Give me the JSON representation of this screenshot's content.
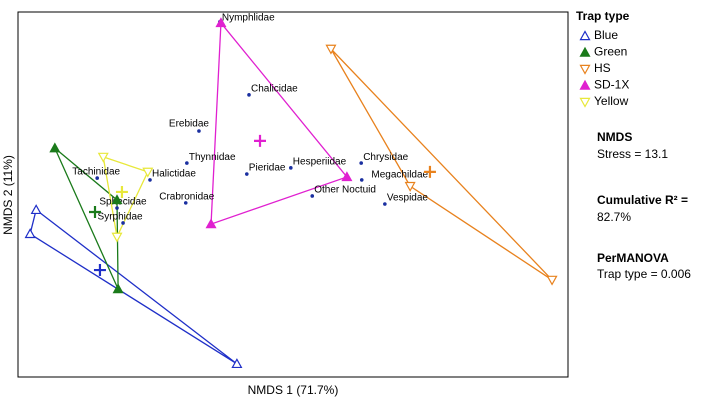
{
  "chart_data": {
    "type": "scatter",
    "x_label": "NMDS 1 (71.7%)",
    "y_label": "NMDS 2 (11%)",
    "xlim": [
      0,
      100
    ],
    "ylim": [
      0,
      100
    ],
    "points": {
      "color": "#1a2fa0",
      "names": [
        "Nymphlidae",
        "Chalicidae",
        "Erebidae",
        "Thynnidae",
        "Halictidae",
        "Tachinidae",
        "Sphecidae",
        "Syrphidae",
        "Crabronidae",
        "Pieridae",
        "Hesperiidae",
        "Chrysidae",
        "Megachildae",
        "Other Noctuid",
        "Vespidae"
      ],
      "x": [
        36.7,
        42.0,
        32.9,
        30.7,
        24.0,
        14.4,
        18.0,
        19.1,
        30.5,
        41.6,
        49.6,
        62.4,
        62.5,
        53.5,
        66.7
      ],
      "y": [
        97.3,
        77.3,
        67.4,
        58.6,
        54.0,
        54.5,
        46.3,
        42.2,
        47.7,
        55.6,
        57.3,
        58.6,
        54.0,
        49.6,
        47.4
      ]
    },
    "legend_title": "Trap type",
    "series": [
      {
        "name": "Blue",
        "color": "#1f2fc8",
        "marker": "triangle-up-open",
        "x": [
          3.3,
          39.8,
          2.2
        ],
        "y": [
          45.8,
          3.6,
          39.2
        ],
        "centroid_x": 14.9,
        "centroid_y": 29.3
      },
      {
        "name": "Green",
        "color": "#1a7a1a",
        "marker": "triangle-up-filled",
        "x": [
          6.7,
          18.0,
          18.2
        ],
        "y": [
          62.7,
          48.5,
          24.1
        ],
        "centroid_x": 14.0,
        "centroid_y": 45.2
      },
      {
        "name": "HS",
        "color": "#e8821e",
        "marker": "triangle-down-open",
        "x": [
          56.9,
          97.1,
          71.3
        ],
        "y": [
          89.9,
          26.6,
          52.3
        ],
        "centroid_x": 74.9,
        "centroid_y": 56.2
      },
      {
        "name": "SD-1X",
        "color": "#e020d0",
        "marker": "triangle-up-filled",
        "x": [
          36.9,
          59.8,
          35.1
        ],
        "y": [
          97.0,
          54.8,
          41.9
        ],
        "centroid_x": 44.0,
        "centroid_y": 64.7
      },
      {
        "name": "Yellow",
        "color": "#e8e83a",
        "marker": "triangle-down-open",
        "x": [
          15.5,
          23.6,
          18.0
        ],
        "y": [
          60.3,
          56.2,
          38.4
        ],
        "centroid_x": 18.9,
        "centroid_y": 50.7
      }
    ],
    "annotations": {
      "nmds_title": "NMDS",
      "stress": "Stress = 13.1",
      "r2_label": "Cumulative R² =",
      "r2_value": "82.7%",
      "permanova_title": "PerMANOVA",
      "permanova": "Trap type = 0.006"
    }
  }
}
